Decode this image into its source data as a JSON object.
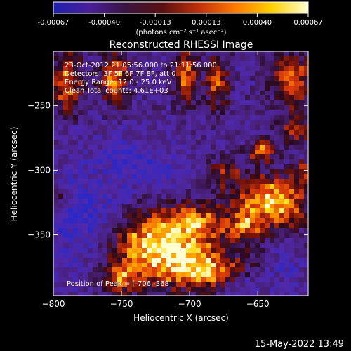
{
  "colorbar": {
    "ticks": [
      "-0.00067",
      "-0.00040",
      "-0.00013",
      "0.00013",
      "0.00040",
      "0.00067"
    ],
    "units_label": "(photons cm⁻² s⁻¹ asec⁻²)",
    "colormap": [
      "#1f1fb0",
      "#4a1f9a",
      "#3a1440",
      "#5a1010",
      "#c0300a",
      "#ff7a00",
      "#ffd000",
      "#ffffd0"
    ]
  },
  "info_lines": [
    "23-Oct-2012 21:05:56.000 to 21:11:56.000",
    "Detectors: 3F 5F 6F 7F 8F, att 0",
    "Energy Range: 12.0 - 25.0 keV",
    "Clean    Total counts: 4.61E+03"
  ],
  "peak_label": "Position of Peak = [-706,-368]",
  "timestamp": "15-May-2022 13:49",
  "chart_data": {
    "type": "heatmap",
    "title": "Reconstructed RHESSI Image",
    "xlabel": "Heliocentric X (arcsec)",
    "ylabel": "Heliocentric Y (arcsec)",
    "xlim": [
      -800,
      -613
    ],
    "ylim": [
      -397,
      -208
    ],
    "xticks": [
      -800,
      -750,
      -700,
      -650
    ],
    "yticks": [
      -250,
      -300,
      -350
    ],
    "peak_position": [
      -706,
      -368
    ],
    "blobs": [
      {
        "x": -723,
        "y": -358,
        "sx": 28,
        "sy": 18,
        "amp": 1.0
      },
      {
        "x": -695,
        "y": -340,
        "sx": 14,
        "sy": 9,
        "amp": 0.45
      },
      {
        "x": -690,
        "y": -378,
        "sx": 22,
        "sy": 10,
        "amp": 0.65
      },
      {
        "x": -752,
        "y": -385,
        "sx": 10,
        "sy": 8,
        "amp": 0.55
      },
      {
        "x": -640,
        "y": -325,
        "sx": 20,
        "sy": 14,
        "amp": 0.9
      },
      {
        "x": -660,
        "y": -345,
        "sx": 8,
        "sy": 8,
        "amp": 0.5
      },
      {
        "x": -647,
        "y": -285,
        "sx": 7,
        "sy": 6,
        "amp": 0.7
      },
      {
        "x": -675,
        "y": -302,
        "sx": 9,
        "sy": 7,
        "amp": 0.4
      },
      {
        "x": -790,
        "y": -232,
        "sx": 8,
        "sy": 16,
        "amp": 0.7
      },
      {
        "x": -755,
        "y": -228,
        "sx": 7,
        "sy": 14,
        "amp": 0.75
      },
      {
        "x": -703,
        "y": -228,
        "sx": 6,
        "sy": 14,
        "amp": 0.7
      },
      {
        "x": -680,
        "y": -232,
        "sx": 6,
        "sy": 14,
        "amp": 0.6
      },
      {
        "x": -625,
        "y": -230,
        "sx": 10,
        "sy": 14,
        "amp": 0.7
      },
      {
        "x": -622,
        "y": -268,
        "sx": 8,
        "sy": 8,
        "amp": 0.55
      },
      {
        "x": -795,
        "y": -320,
        "sx": 5,
        "sy": 5,
        "amp": 0.45
      },
      {
        "x": -615,
        "y": -300,
        "sx": 6,
        "sy": 6,
        "amp": 0.45
      }
    ],
    "cold": [
      {
        "x": -775,
        "y": -340,
        "sx": 22,
        "sy": 30,
        "amp": 0.5
      },
      {
        "x": -745,
        "y": -290,
        "sx": 12,
        "sy": 12,
        "amp": 0.35
      },
      {
        "x": -720,
        "y": -300,
        "sx": 14,
        "sy": 10,
        "amp": 0.3
      },
      {
        "x": -660,
        "y": -390,
        "sx": 10,
        "sy": 8,
        "amp": 0.35
      },
      {
        "x": -630,
        "y": -375,
        "sx": 10,
        "sy": 10,
        "amp": 0.3
      }
    ]
  }
}
